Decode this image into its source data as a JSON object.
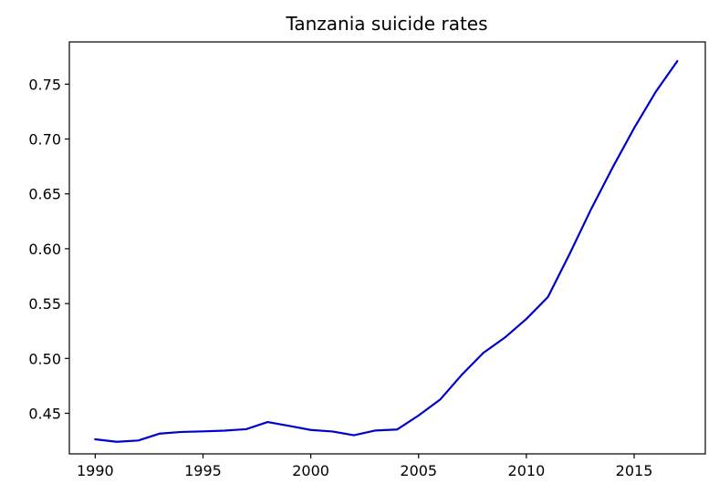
{
  "chart_data": {
    "type": "line",
    "title": "Tanzania suicide rates",
    "xlabel": "",
    "ylabel": "",
    "xlim": [
      1988.8,
      2018.3
    ],
    "ylim": [
      0.413,
      0.7885
    ],
    "x_ticks": [
      1990,
      1995,
      2000,
      2005,
      2010,
      2015
    ],
    "y_ticks": [
      0.45,
      0.5,
      0.55,
      0.6,
      0.65,
      0.7,
      0.75
    ],
    "x_tick_labels": [
      "1990",
      "1995",
      "2000",
      "2005",
      "2010",
      "2015"
    ],
    "y_tick_labels": [
      "0.45",
      "0.50",
      "0.55",
      "0.60",
      "0.65",
      "0.70",
      "0.75"
    ],
    "grid": false,
    "legend": false,
    "line_color": "#0000cd",
    "x": [
      1990,
      1991,
      1992,
      1993,
      1994,
      1995,
      1996,
      1997,
      1998,
      1999,
      2000,
      2001,
      2002,
      2003,
      2004,
      2005,
      2006,
      2007,
      2008,
      2009,
      2010,
      2011,
      2012,
      2013,
      2014,
      2015,
      2016,
      2017
    ],
    "values": [
      0.4263,
      0.424,
      0.4252,
      0.4315,
      0.433,
      0.4335,
      0.4342,
      0.4355,
      0.442,
      0.4385,
      0.4348,
      0.4334,
      0.43,
      0.4343,
      0.4352,
      0.448,
      0.4625,
      0.485,
      0.505,
      0.519,
      0.536,
      0.556,
      0.595,
      0.636,
      0.674,
      0.71,
      0.743,
      0.771
    ]
  }
}
